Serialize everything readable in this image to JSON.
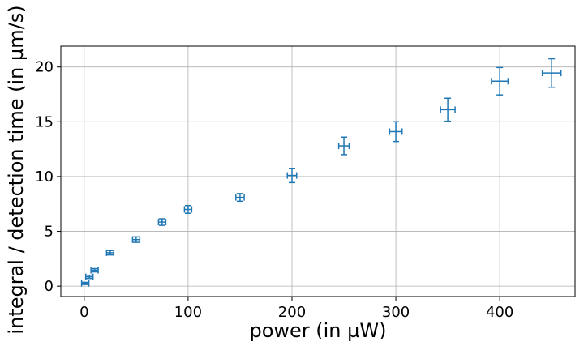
{
  "chart_data": {
    "type": "scatter",
    "title": "",
    "xlabel": "power (in  µW)",
    "ylabel": "integral / detection time (in µm/s)",
    "xlim": [
      -22.5,
      472.5
    ],
    "ylim": [
      -0.95,
      21.9
    ],
    "xticks": [
      0,
      100,
      200,
      300,
      400
    ],
    "yticks": [
      0,
      5,
      10,
      15,
      20
    ],
    "xtick_labels": [
      "0",
      "100",
      "200",
      "300",
      "400"
    ],
    "ytick_labels": [
      "0",
      "5",
      "10",
      "15",
      "20"
    ],
    "grid": true,
    "error_bars": true,
    "series": [
      {
        "color": "#1f77b4",
        "points": [
          {
            "x": 1,
            "y": 0.25,
            "xerr": 3.5,
            "yerr": 0.1
          },
          {
            "x": 5,
            "y": 0.85,
            "xerr": 3.5,
            "yerr": 0.15
          },
          {
            "x": 10,
            "y": 1.45,
            "xerr": 3.5,
            "yerr": 0.15
          },
          {
            "x": 25,
            "y": 3.05,
            "xerr": 3.5,
            "yerr": 0.2
          },
          {
            "x": 50,
            "y": 4.25,
            "xerr": 3.5,
            "yerr": 0.25
          },
          {
            "x": 75,
            "y": 5.85,
            "xerr": 3.5,
            "yerr": 0.3
          },
          {
            "x": 100,
            "y": 7.0,
            "xerr": 3.5,
            "yerr": 0.35
          },
          {
            "x": 150,
            "y": 8.1,
            "xerr": 4,
            "yerr": 0.35
          },
          {
            "x": 200,
            "y": 10.1,
            "xerr": 4.5,
            "yerr": 0.65
          },
          {
            "x": 250,
            "y": 12.8,
            "xerr": 5,
            "yerr": 0.8
          },
          {
            "x": 300,
            "y": 14.1,
            "xerr": 6,
            "yerr": 0.9
          },
          {
            "x": 350,
            "y": 16.1,
            "xerr": 7,
            "yerr": 1.05
          },
          {
            "x": 400,
            "y": 18.7,
            "xerr": 8,
            "yerr": 1.25
          },
          {
            "x": 450,
            "y": 19.45,
            "xerr": 9,
            "yerr": 1.3
          }
        ]
      }
    ]
  }
}
